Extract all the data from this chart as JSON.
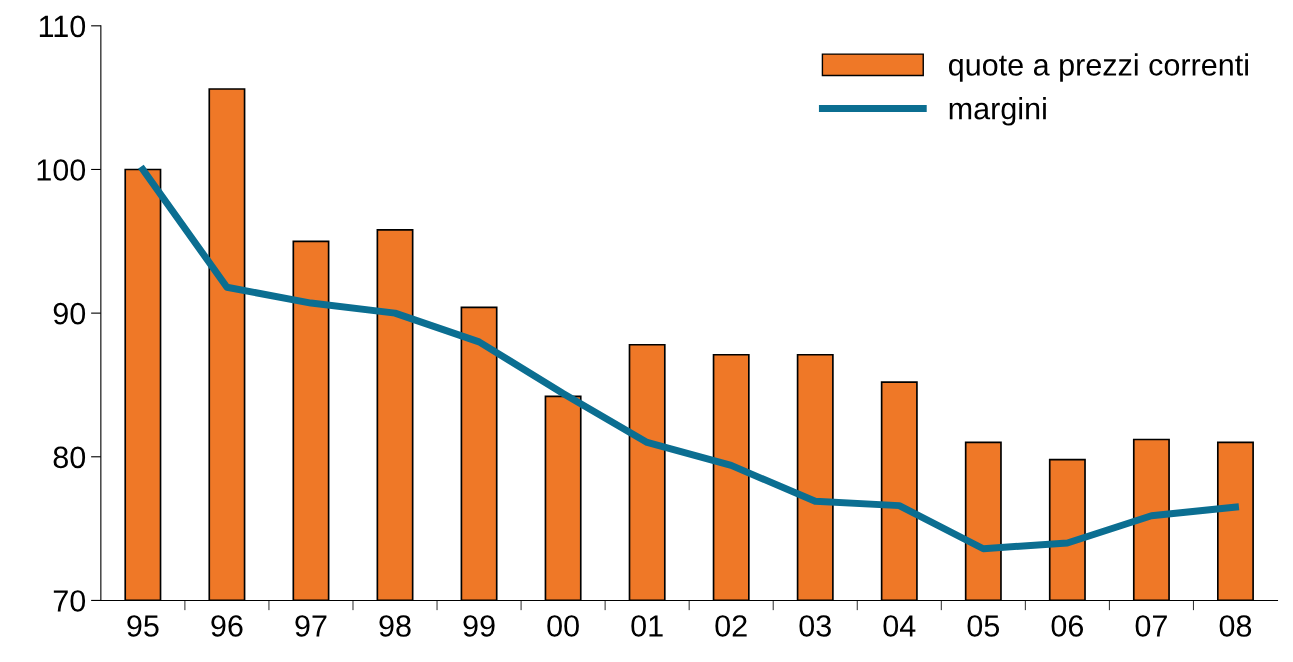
{
  "chart_data": {
    "type": "bar",
    "categories": [
      "95",
      "96",
      "97",
      "98",
      "99",
      "00",
      "01",
      "02",
      "03",
      "04",
      "05",
      "06",
      "07",
      "08"
    ],
    "series": [
      {
        "name": "quote a prezzi correnti",
        "color": "#ef7827",
        "values": [
          100,
          105.6,
          95.0,
          95.8,
          90.4,
          84.2,
          87.8,
          87.1,
          87.1,
          85.2,
          81.0,
          79.8,
          81.2,
          81.0
        ]
      },
      {
        "name": "margini",
        "type": "line",
        "color": "#0b6e91",
        "values": [
          100,
          91.8,
          90.7,
          90.0,
          88.0,
          84.4,
          81.0,
          79.4,
          76.9,
          76.6,
          73.6,
          74.0,
          75.9,
          76.5
        ]
      }
    ],
    "ylim": [
      70,
      110
    ],
    "yticks": [
      70,
      80,
      90,
      100,
      110
    ],
    "grid": false,
    "legend": "top right",
    "marker": "none",
    "line_style": "solid"
  }
}
